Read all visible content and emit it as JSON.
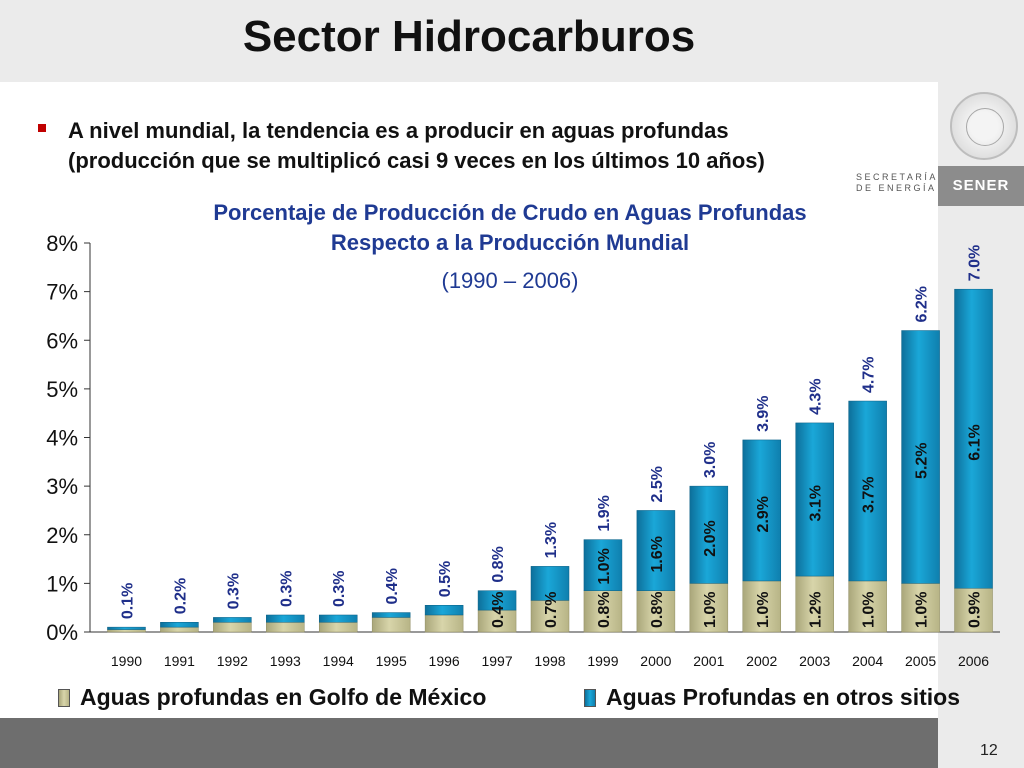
{
  "title": "Sector Hidrocarburos",
  "bullet": {
    "line1": "A nivel mundial, la tendencia es a producir en aguas profundas",
    "line2": "(producción que se multiplicó casi 9 veces en los últimos 10 años)"
  },
  "logo": {
    "secretaria_line1": "SECRETARÍA",
    "secretaria_line2": "DE ENERGÍA",
    "brand": "SENER"
  },
  "page_number": "12",
  "colors": {
    "gulf_series": "#d8d5aa",
    "other_series": "#1aa7d8",
    "title_blue": "#1f3a93",
    "label_blue": "#1f2f8a"
  },
  "chart_data": {
    "type": "bar",
    "stacked": true,
    "title_line1": "Porcentaje de Producción de Crudo en Aguas Profundas",
    "title_line2": "Respecto a la Producción Mundial",
    "subtitle": "(1990 – 2006)",
    "categories": [
      "1990",
      "1991",
      "1992",
      "1993",
      "1994",
      "1995",
      "1996",
      "1997",
      "1998",
      "1999",
      "2000",
      "2001",
      "2002",
      "2003",
      "2004",
      "2005",
      "2006"
    ],
    "ylim": [
      0,
      8
    ],
    "yticks": [
      "0%",
      "1%",
      "2%",
      "3%",
      "4%",
      "5%",
      "6%",
      "7%",
      "8%"
    ],
    "series": [
      {
        "name": "Aguas profundas en Golfo de México",
        "values": [
          0.05,
          0.1,
          0.2,
          0.2,
          0.2,
          0.3,
          0.35,
          0.45,
          0.65,
          0.85,
          0.85,
          1.0,
          1.05,
          1.15,
          1.05,
          1.0,
          0.9
        ],
        "labels": [
          "",
          "",
          "",
          "",
          "",
          "",
          "",
          "0.4%",
          "0.7%",
          "0.8%",
          "0.8%",
          "1.0%",
          "1.0%",
          "1.2%",
          "1.0%",
          "1.0%",
          "0.9%"
        ]
      },
      {
        "name": "Aguas Profundas en otros sitios",
        "values": [
          0.05,
          0.1,
          0.1,
          0.15,
          0.15,
          0.1,
          0.2,
          0.4,
          0.7,
          1.05,
          1.65,
          2.0,
          2.9,
          3.15,
          3.7,
          5.2,
          6.15
        ],
        "labels": [
          "",
          "",
          "",
          "",
          "",
          "",
          "",
          "",
          "",
          "1.0%",
          "1.6%",
          "2.0%",
          "2.9%",
          "3.1%",
          "3.7%",
          "5.2%",
          "6.1%"
        ]
      }
    ],
    "totals": [
      0.1,
      0.2,
      0.3,
      0.35,
      0.35,
      0.4,
      0.55,
      0.85,
      1.35,
      1.9,
      2.5,
      3.0,
      3.95,
      4.3,
      4.75,
      6.2,
      7.05
    ],
    "total_labels": [
      "0.1%",
      "0.2%",
      "0.3%",
      "0.3%",
      "0.3%",
      "0.4%",
      "0.5%",
      "0.8%",
      "1.3%",
      "1.9%",
      "2.5%",
      "3.0%",
      "3.9%",
      "4.3%",
      "4.7%",
      "6.2%",
      "7.0%"
    ],
    "legend_position": "bottom",
    "grid": false
  }
}
